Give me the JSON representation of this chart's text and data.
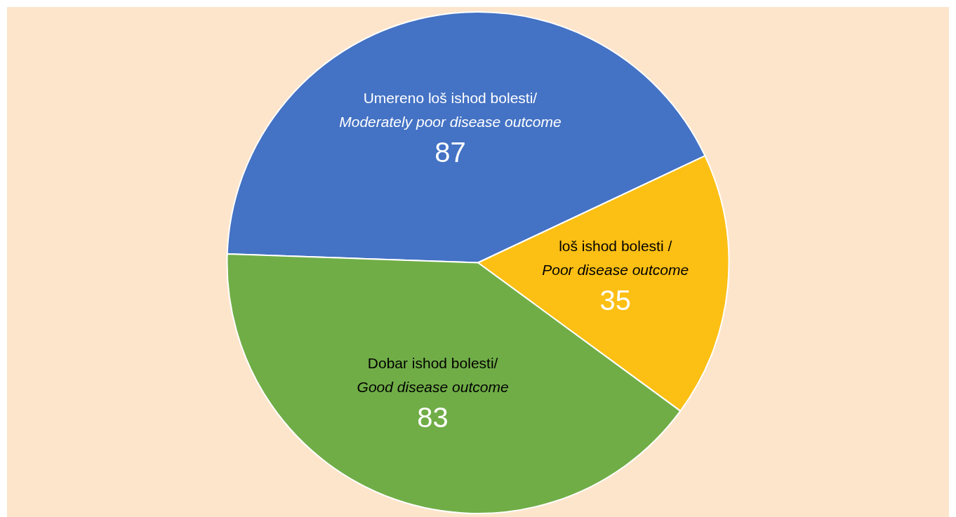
{
  "chart_data": {
    "type": "pie",
    "categories": [
      "Umereno loš ishod bolesti/\nModerately poor disease outcome",
      "loš ishod bolesti /\nPoor disease outcome",
      "Dobar ishod bolesti/\nGood disease outcome"
    ],
    "values": [
      87,
      35,
      83
    ],
    "colors": [
      "#4472c4",
      "#fcbf14",
      "#70ad47"
    ],
    "data_labels": true,
    "legend": false
  }
}
